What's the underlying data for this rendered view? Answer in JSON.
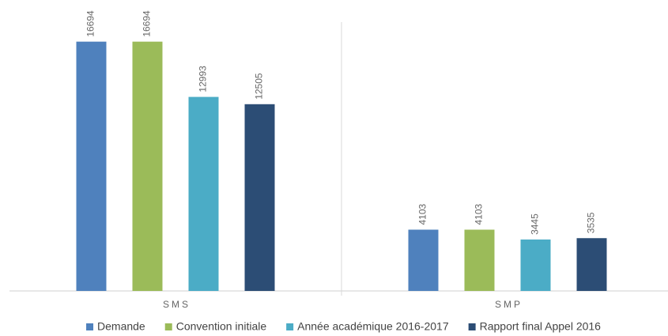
{
  "chart_data": {
    "type": "bar",
    "categories": [
      "SMS",
      "SMP"
    ],
    "series": [
      {
        "name": "Demande",
        "color": "#4f81bd",
        "values": [
          16694,
          4103
        ]
      },
      {
        "name": "Convention initiale",
        "color": "#9bbb59",
        "values": [
          16694,
          4103
        ]
      },
      {
        "name": "Année académique 2016-2017",
        "color": "#4bacc6",
        "values": [
          12993,
          3445
        ]
      },
      {
        "name": "Rapport final Appel 2016",
        "color": "#2c4d75",
        "values": [
          12505,
          3535
        ]
      }
    ],
    "ylim": [
      0,
      18000
    ],
    "legend": "bottom"
  }
}
